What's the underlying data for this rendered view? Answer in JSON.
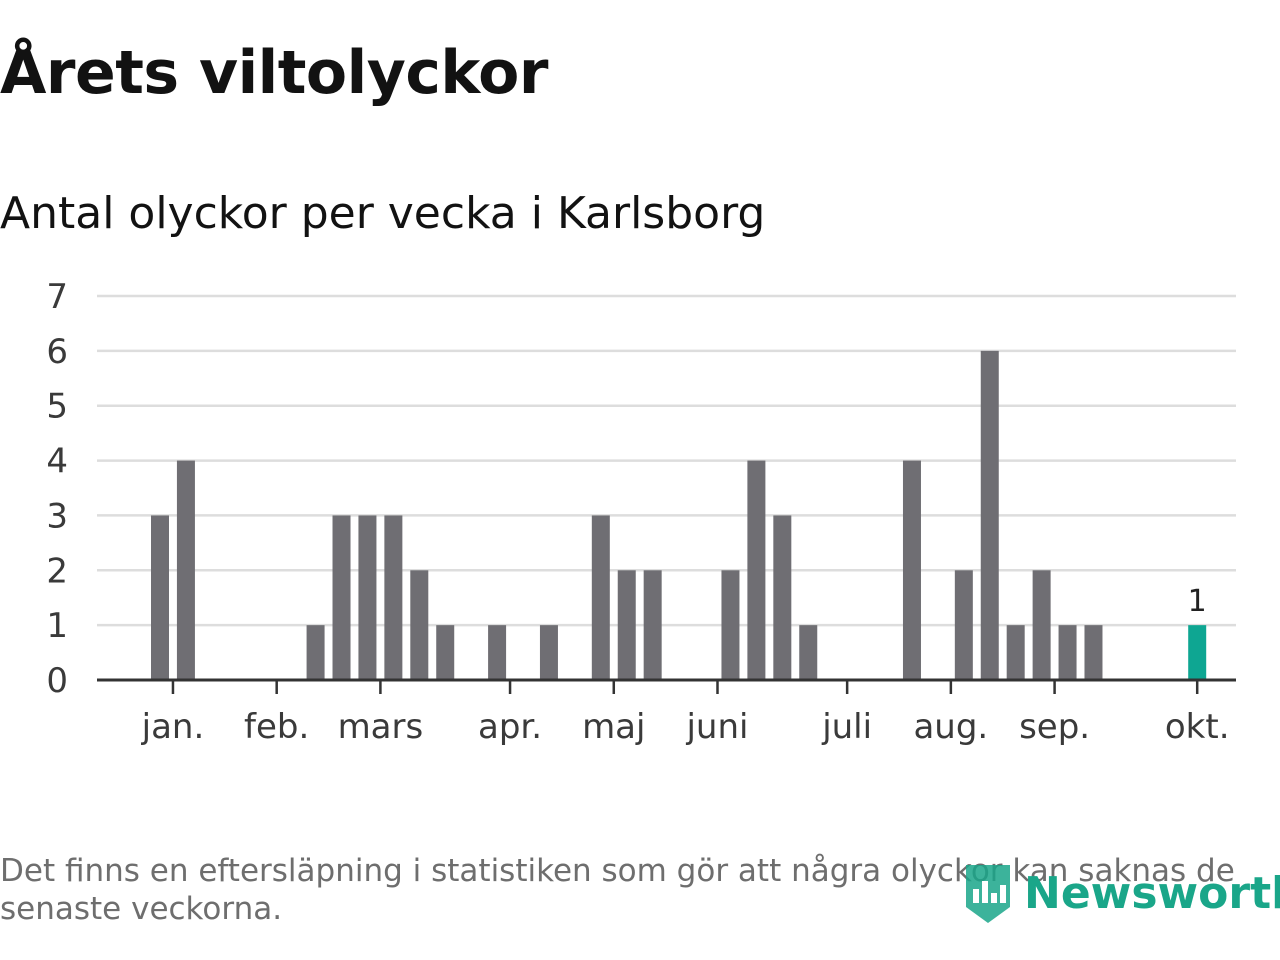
{
  "title": "Årets viltolyckor",
  "subtitle": "Antal olyckor per vecka i Karlsborg",
  "footnote": "Det finns en eftersläpning i statistiken som gör att några olyckor kan saknas de senaste veckorna.",
  "logo": {
    "text": "Newsworthy",
    "icon": "newsworthy-chart-icon"
  },
  "colors": {
    "bar": "#6f6e73",
    "highlight": "#0ea692",
    "grid": "#dddddd",
    "axis": "#333333"
  },
  "chart_data": {
    "type": "bar",
    "title": "Antal olyckor per vecka i Karlsborg",
    "xlabel": "",
    "ylabel": "",
    "ylim": [
      0,
      7
    ],
    "yticks": [
      "0",
      "1",
      "2",
      "3",
      "4",
      "5",
      "6",
      "7"
    ],
    "grid": true,
    "weeks": [
      1,
      2,
      3,
      4,
      5,
      6,
      7,
      8,
      9,
      10,
      11,
      12,
      13,
      14,
      15,
      16,
      17,
      18,
      19,
      20,
      21,
      22,
      23,
      24,
      25,
      26,
      27,
      28,
      29,
      30,
      31,
      32,
      33,
      34,
      35,
      36,
      37,
      38,
      39,
      40,
      41
    ],
    "values": [
      3,
      4,
      0,
      0,
      0,
      0,
      1,
      3,
      3,
      3,
      2,
      1,
      0,
      1,
      0,
      1,
      0,
      3,
      2,
      2,
      0,
      0,
      2,
      4,
      3,
      1,
      0,
      0,
      0,
      4,
      0,
      2,
      6,
      1,
      2,
      1,
      1,
      0,
      0,
      0,
      1
    ],
    "highlight_last": true,
    "data_labels": [
      {
        "week": 41,
        "text": "1"
      }
    ],
    "month_ticks": [
      {
        "label": "jan.",
        "pos": 1.5
      },
      {
        "label": "feb.",
        "pos": 5.5
      },
      {
        "label": "mars",
        "pos": 9.5
      },
      {
        "label": "apr.",
        "pos": 14.5
      },
      {
        "label": "maj",
        "pos": 18.5
      },
      {
        "label": "juni",
        "pos": 22.5
      },
      {
        "label": "juli",
        "pos": 27.5
      },
      {
        "label": "aug.",
        "pos": 31.5
      },
      {
        "label": "sep.",
        "pos": 35.5
      },
      {
        "label": "okt.",
        "pos": 41
      }
    ]
  }
}
